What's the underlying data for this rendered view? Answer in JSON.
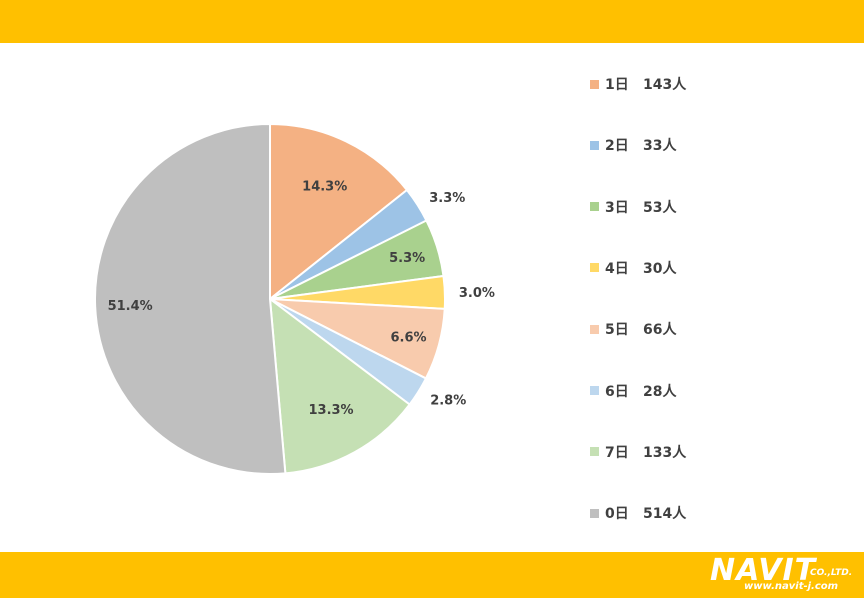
{
  "chart_data": {
    "type": "pie",
    "categories": [
      "1日",
      "2日",
      "3日",
      "4日",
      "5日",
      "6日",
      "7日",
      "0日"
    ],
    "values": [
      143,
      33,
      53,
      30,
      66,
      28,
      133,
      514
    ],
    "percent_labels": [
      "14.3%",
      "3.3%",
      "5.3%",
      "3.0%",
      "6.6%",
      "2.8%",
      "13.3%",
      "51.4%"
    ],
    "legend_counts": [
      "143人",
      "33人",
      "53人",
      "30人",
      "66人",
      "28人",
      "133人",
      "514人"
    ],
    "colors": [
      "#f4b183",
      "#9dc3e6",
      "#a9d18e",
      "#ffd966",
      "#f8cbad",
      "#bdd7ee",
      "#c5e0b4",
      "#bfbfbf"
    ],
    "title": "",
    "legend_position": "right",
    "start_angle": "12 o'clock, clockwise"
  },
  "branding": {
    "logo_text": "NAVIT",
    "logo_suffix": "CO.,LTD.",
    "url": "www.navit-j.com",
    "bar_color": "#ffc000"
  }
}
